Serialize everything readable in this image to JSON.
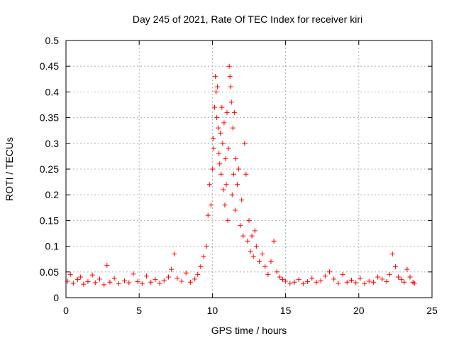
{
  "chart_data": {
    "type": "scatter",
    "title": "Day 245 of 2021, Rate Of TEC Index for receiver kiri",
    "xlabel": "GPS time / hours",
    "ylabel": "ROTI / TECUs",
    "xlim": [
      0,
      25
    ],
    "ylim": [
      0,
      0.5
    ],
    "x_ticks": [
      "0",
      "5",
      "10",
      "15",
      "20",
      "25"
    ],
    "y_ticks": [
      "0",
      "0.05",
      "0.1",
      "0.15",
      "0.2",
      "0.25",
      "0.3",
      "0.35",
      "0.4",
      "0.45",
      "0.5"
    ],
    "grid": true,
    "marker": "+",
    "color": "#ff0000",
    "series": [
      {
        "name": "ROTI",
        "x": [
          0.1,
          0.3,
          0.5,
          0.8,
          1.0,
          1.2,
          1.5,
          1.8,
          2.0,
          2.3,
          2.6,
          2.8,
          3.0,
          3.3,
          3.6,
          4.0,
          4.3,
          4.6,
          4.9,
          5.2,
          5.5,
          5.8,
          6.1,
          6.4,
          6.7,
          7.0,
          7.2,
          7.4,
          7.6,
          7.9,
          8.2,
          8.5,
          8.8,
          9.0,
          9.2,
          9.4,
          9.6,
          9.7,
          9.8,
          9.9,
          10.0,
          10.05,
          10.1,
          10.15,
          10.2,
          10.25,
          10.3,
          10.35,
          10.4,
          10.45,
          10.5,
          10.55,
          10.6,
          10.65,
          10.7,
          10.75,
          10.8,
          10.85,
          10.9,
          10.95,
          11.0,
          11.05,
          11.1,
          11.15,
          11.2,
          11.25,
          11.3,
          11.35,
          11.4,
          11.45,
          11.5,
          11.55,
          11.6,
          11.7,
          11.8,
          11.9,
          12.0,
          12.1,
          12.2,
          12.3,
          12.4,
          12.5,
          12.6,
          12.7,
          12.8,
          12.9,
          13.0,
          13.2,
          13.4,
          13.6,
          13.8,
          14.0,
          14.2,
          14.4,
          14.6,
          14.8,
          15.0,
          15.3,
          15.6,
          15.9,
          16.2,
          16.5,
          16.8,
          17.1,
          17.4,
          17.7,
          18.0,
          18.3,
          18.6,
          18.9,
          19.2,
          19.5,
          19.8,
          20.1,
          20.4,
          20.7,
          21.0,
          21.3,
          21.6,
          21.9,
          22.1,
          22.3,
          22.5,
          22.7,
          22.9,
          23.1,
          23.3,
          23.5,
          23.7,
          23.8
        ],
        "y": [
          0.032,
          0.045,
          0.028,
          0.035,
          0.04,
          0.026,
          0.031,
          0.044,
          0.029,
          0.036,
          0.025,
          0.063,
          0.03,
          0.038,
          0.027,
          0.033,
          0.029,
          0.046,
          0.031,
          0.027,
          0.042,
          0.03,
          0.035,
          0.028,
          0.033,
          0.04,
          0.055,
          0.085,
          0.038,
          0.032,
          0.048,
          0.03,
          0.036,
          0.045,
          0.06,
          0.08,
          0.1,
          0.16,
          0.22,
          0.18,
          0.25,
          0.31,
          0.29,
          0.37,
          0.43,
          0.4,
          0.35,
          0.41,
          0.33,
          0.28,
          0.26,
          0.32,
          0.24,
          0.37,
          0.3,
          0.21,
          0.34,
          0.18,
          0.27,
          0.22,
          0.36,
          0.15,
          0.29,
          0.45,
          0.43,
          0.41,
          0.38,
          0.2,
          0.33,
          0.24,
          0.36,
          0.17,
          0.27,
          0.22,
          0.25,
          0.14,
          0.19,
          0.12,
          0.3,
          0.24,
          0.11,
          0.15,
          0.09,
          0.12,
          0.08,
          0.13,
          0.1,
          0.07,
          0.085,
          0.06,
          0.045,
          0.07,
          0.11,
          0.05,
          0.04,
          0.035,
          0.032,
          0.028,
          0.03,
          0.035,
          0.027,
          0.031,
          0.038,
          0.03,
          0.033,
          0.042,
          0.05,
          0.036,
          0.028,
          0.045,
          0.03,
          0.034,
          0.029,
          0.038,
          0.027,
          0.032,
          0.03,
          0.04,
          0.036,
          0.031,
          0.045,
          0.085,
          0.06,
          0.04,
          0.035,
          0.03,
          0.055,
          0.04,
          0.03,
          0.028
        ]
      }
    ]
  }
}
